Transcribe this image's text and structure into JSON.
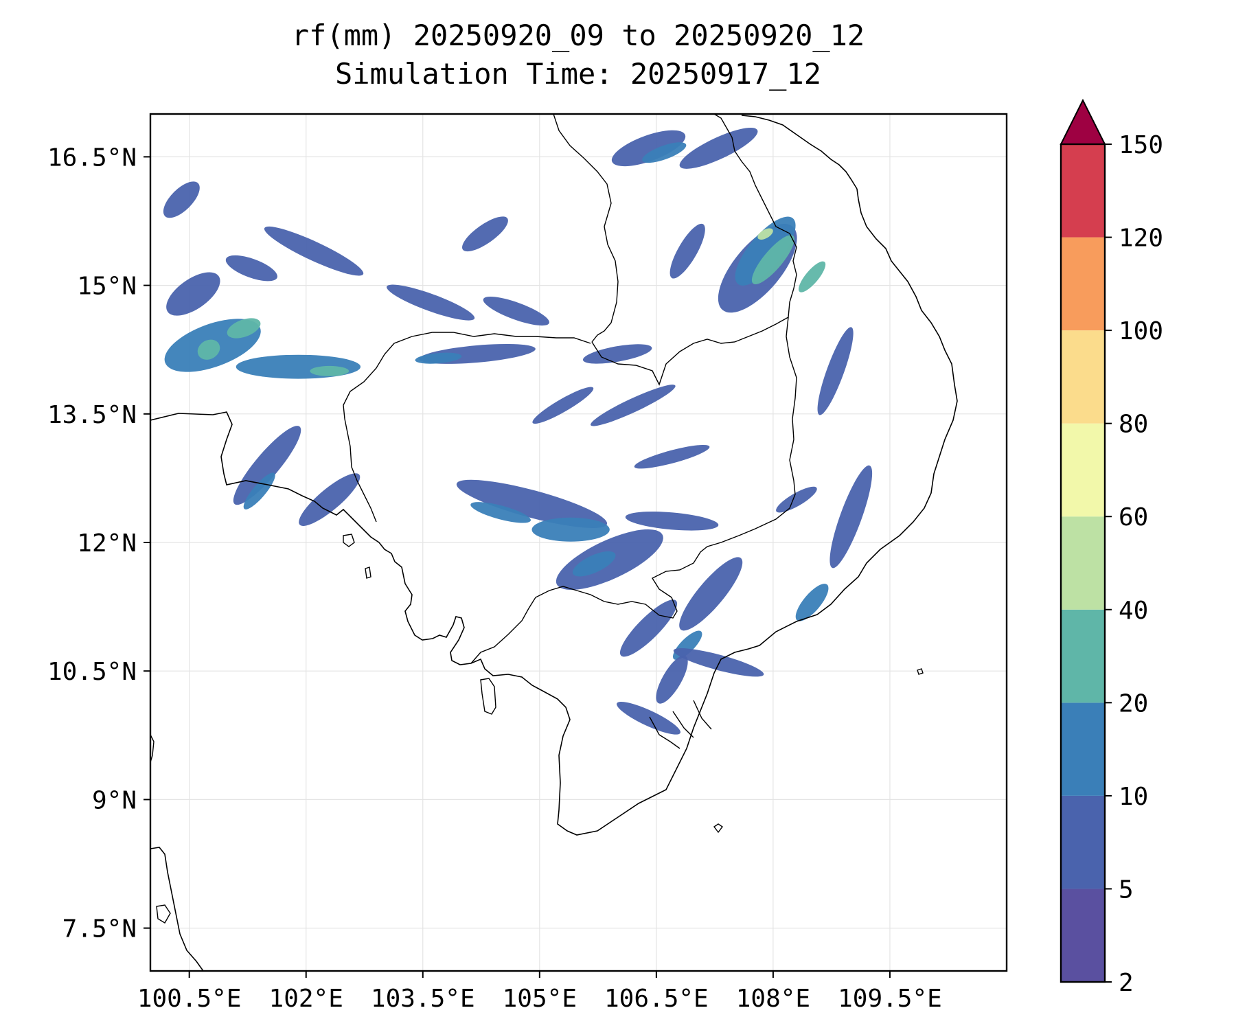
{
  "title_line1": "rf(mm) 20250920_09 to 20250920_12",
  "title_line2": "Simulation Time: 20250917_12",
  "map": {
    "lon_range": [
      100.0,
      111.0
    ],
    "lat_range": [
      7.0,
      17.0
    ],
    "x_ticks": [
      {
        "value": 100.5,
        "label": "100.5°E"
      },
      {
        "value": 102.0,
        "label": "102°E"
      },
      {
        "value": 103.5,
        "label": "103.5°E"
      },
      {
        "value": 105.0,
        "label": "105°E"
      },
      {
        "value": 106.5,
        "label": "106.5°E"
      },
      {
        "value": 108.0,
        "label": "108°E"
      },
      {
        "value": 109.5,
        "label": "109.5°E"
      }
    ],
    "y_ticks": [
      {
        "value": 16.5,
        "label": "16.5°N"
      },
      {
        "value": 15.0,
        "label": "15°N"
      },
      {
        "value": 13.5,
        "label": "13.5°N"
      },
      {
        "value": 12.0,
        "label": "12°N"
      },
      {
        "value": 10.5,
        "label": "10.5°N"
      },
      {
        "value": 9.0,
        "label": "9°N"
      },
      {
        "value": 7.5,
        "label": "7.5°N"
      }
    ],
    "grid": true
  },
  "colorbar": {
    "levels": [
      "2",
      "5",
      "10",
      "20",
      "40",
      "60",
      "80",
      "100",
      "120",
      "150"
    ],
    "colors": [
      "#5a50a0",
      "#4a63ad",
      "#3a7fb8",
      "#5fb6a8",
      "#bde1a4",
      "#f2f8aa",
      "#fbdc8c",
      "#f89c5c",
      "#d53e4f"
    ],
    "extend_color": "#9e0142"
  },
  "rain_patches": [
    {
      "lon": 100.55,
      "lat": 14.9,
      "dlon": 0.8,
      "dlat": 0.35,
      "angle": -35,
      "level": 1
    },
    {
      "lon": 100.8,
      "lat": 14.3,
      "dlon": 1.3,
      "dlat": 0.5,
      "angle": -20,
      "level": 2
    },
    {
      "lon": 101.2,
      "lat": 14.5,
      "dlon": 0.45,
      "dlat": 0.2,
      "angle": -20,
      "level": 3
    },
    {
      "lon": 100.75,
      "lat": 14.25,
      "dlon": 0.3,
      "dlat": 0.22,
      "angle": -30,
      "level": 3
    },
    {
      "lon": 101.9,
      "lat": 14.05,
      "dlon": 1.6,
      "dlat": 0.28,
      "angle": 0,
      "level": 2
    },
    {
      "lon": 102.3,
      "lat": 14.0,
      "dlon": 0.5,
      "dlat": 0.12,
      "angle": 0,
      "level": 3
    },
    {
      "lon": 101.3,
      "lat": 15.2,
      "dlon": 0.7,
      "dlat": 0.22,
      "angle": 20,
      "level": 1
    },
    {
      "lon": 102.1,
      "lat": 15.4,
      "dlon": 1.4,
      "dlat": 0.22,
      "angle": 25,
      "level": 1
    },
    {
      "lon": 100.4,
      "lat": 16.0,
      "dlon": 0.6,
      "dlat": 0.25,
      "angle": -45,
      "level": 1
    },
    {
      "lon": 101.5,
      "lat": 12.9,
      "dlon": 1.3,
      "dlat": 0.28,
      "angle": -50,
      "level": 1
    },
    {
      "lon": 101.4,
      "lat": 12.6,
      "dlon": 0.6,
      "dlat": 0.15,
      "angle": -50,
      "level": 2
    },
    {
      "lon": 102.3,
      "lat": 12.5,
      "dlon": 1.0,
      "dlat": 0.25,
      "angle": -40,
      "level": 1
    },
    {
      "lon": 104.3,
      "lat": 15.6,
      "dlon": 0.7,
      "dlat": 0.22,
      "angle": -35,
      "level": 1
    },
    {
      "lon": 103.6,
      "lat": 14.8,
      "dlon": 1.2,
      "dlat": 0.2,
      "angle": 20,
      "level": 1
    },
    {
      "lon": 104.7,
      "lat": 14.7,
      "dlon": 0.9,
      "dlat": 0.2,
      "angle": 20,
      "level": 1
    },
    {
      "lon": 104.2,
      "lat": 14.2,
      "dlon": 1.5,
      "dlat": 0.2,
      "angle": -5,
      "level": 1
    },
    {
      "lon": 103.7,
      "lat": 14.15,
      "dlon": 0.6,
      "dlat": 0.12,
      "angle": -5,
      "level": 2
    },
    {
      "lon": 106.0,
      "lat": 14.2,
      "dlon": 0.9,
      "dlat": 0.18,
      "angle": -10,
      "level": 1
    },
    {
      "lon": 105.3,
      "lat": 13.6,
      "dlon": 0.9,
      "dlat": 0.15,
      "angle": -30,
      "level": 1
    },
    {
      "lon": 106.2,
      "lat": 13.6,
      "dlon": 1.2,
      "dlat": 0.16,
      "angle": -25,
      "level": 1
    },
    {
      "lon": 106.7,
      "lat": 13.0,
      "dlon": 1.0,
      "dlat": 0.15,
      "angle": -15,
      "level": 1
    },
    {
      "lon": 104.9,
      "lat": 12.45,
      "dlon": 2.0,
      "dlat": 0.32,
      "angle": 15,
      "level": 1
    },
    {
      "lon": 104.5,
      "lat": 12.35,
      "dlon": 0.8,
      "dlat": 0.16,
      "angle": 15,
      "level": 2
    },
    {
      "lon": 105.4,
      "lat": 12.15,
      "dlon": 1.0,
      "dlat": 0.28,
      "angle": 0,
      "level": 2
    },
    {
      "lon": 105.9,
      "lat": 11.8,
      "dlon": 1.5,
      "dlat": 0.45,
      "angle": -25,
      "level": 1
    },
    {
      "lon": 105.7,
      "lat": 11.75,
      "dlon": 0.6,
      "dlat": 0.2,
      "angle": -25,
      "level": 2
    },
    {
      "lon": 106.7,
      "lat": 12.25,
      "dlon": 1.2,
      "dlat": 0.2,
      "angle": 5,
      "level": 1
    },
    {
      "lon": 107.2,
      "lat": 11.4,
      "dlon": 1.2,
      "dlat": 0.3,
      "angle": -50,
      "level": 1
    },
    {
      "lon": 106.4,
      "lat": 11.0,
      "dlon": 1.0,
      "dlat": 0.25,
      "angle": -45,
      "level": 1
    },
    {
      "lon": 106.9,
      "lat": 10.8,
      "dlon": 0.5,
      "dlat": 0.16,
      "angle": -45,
      "level": 2
    },
    {
      "lon": 106.7,
      "lat": 10.4,
      "dlon": 0.7,
      "dlat": 0.22,
      "angle": -60,
      "level": 1
    },
    {
      "lon": 107.3,
      "lat": 10.6,
      "dlon": 1.2,
      "dlat": 0.18,
      "angle": 15,
      "level": 1
    },
    {
      "lon": 106.4,
      "lat": 9.95,
      "dlon": 0.9,
      "dlat": 0.18,
      "angle": 25,
      "level": 1
    },
    {
      "lon": 106.4,
      "lat": 16.6,
      "dlon": 1.0,
      "dlat": 0.3,
      "angle": -20,
      "level": 1
    },
    {
      "lon": 106.6,
      "lat": 16.55,
      "dlon": 0.6,
      "dlat": 0.16,
      "angle": -20,
      "level": 2
    },
    {
      "lon": 107.3,
      "lat": 16.6,
      "dlon": 1.1,
      "dlat": 0.25,
      "angle": -25,
      "level": 1
    },
    {
      "lon": 106.9,
      "lat": 15.4,
      "dlon": 0.8,
      "dlat": 0.22,
      "angle": -60,
      "level": 1
    },
    {
      "lon": 107.8,
      "lat": 15.2,
      "dlon": 1.4,
      "dlat": 0.55,
      "angle": -50,
      "level": 1
    },
    {
      "lon": 107.9,
      "lat": 15.4,
      "dlon": 1.1,
      "dlat": 0.38,
      "angle": -50,
      "level": 2
    },
    {
      "lon": 108.0,
      "lat": 15.3,
      "dlon": 0.8,
      "dlat": 0.22,
      "angle": -50,
      "level": 3
    },
    {
      "lon": 107.9,
      "lat": 15.6,
      "dlon": 0.22,
      "dlat": 0.1,
      "angle": -30,
      "level": 4
    },
    {
      "lon": 108.5,
      "lat": 15.1,
      "dlon": 0.5,
      "dlat": 0.15,
      "angle": -50,
      "level": 3
    },
    {
      "lon": 108.8,
      "lat": 14.0,
      "dlon": 1.2,
      "dlat": 0.2,
      "angle": -70,
      "level": 1
    },
    {
      "lon": 109.0,
      "lat": 12.3,
      "dlon": 1.4,
      "dlat": 0.25,
      "angle": -70,
      "level": 1
    },
    {
      "lon": 108.5,
      "lat": 11.3,
      "dlon": 0.6,
      "dlat": 0.2,
      "angle": -50,
      "level": 2
    },
    {
      "lon": 108.3,
      "lat": 12.5,
      "dlon": 0.6,
      "dlat": 0.15,
      "angle": -30,
      "level": 1
    }
  ]
}
